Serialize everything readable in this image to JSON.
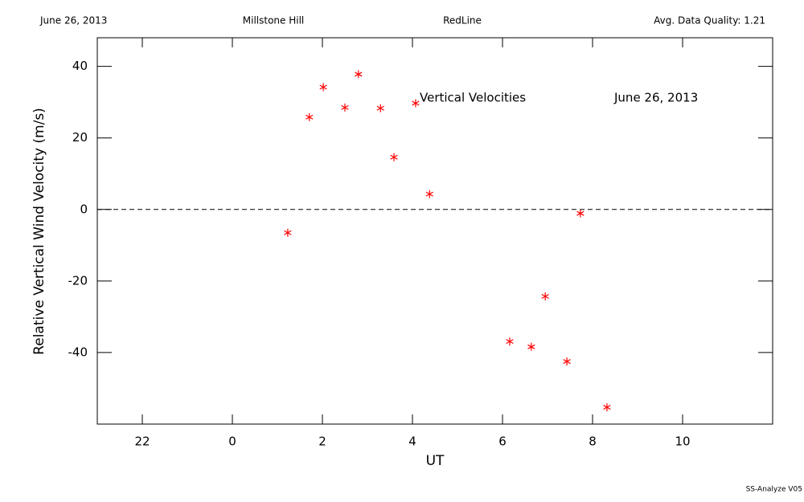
{
  "header": {
    "date": "June 26, 2013",
    "site": "Millstone Hill",
    "instrument": "RedLine",
    "quality": "Avg. Data Quality: 1.21"
  },
  "footer": "SS-Analyze V05",
  "chart_data": {
    "type": "scatter",
    "xlabel": "UT",
    "ylabel": "Relative Vertical Wind Velocity (m/s)",
    "annotations": [
      "Vertical Velocities",
      "June 26, 2013"
    ],
    "x": [
      1.23,
      1.71,
      2.02,
      2.5,
      2.8,
      3.29,
      3.59,
      4.07,
      4.38,
      6.16,
      6.64,
      6.95,
      7.43,
      7.73,
      8.32
    ],
    "series": [
      {
        "name": "Vertical Velocities",
        "color": "#ff0000",
        "values": [
          -6.5,
          25.8,
          34.2,
          28.5,
          37.8,
          28.3,
          14.6,
          29.7,
          4.3,
          -36.9,
          -38.4,
          -24.3,
          -42.5,
          -1.1,
          -55.3
        ]
      }
    ],
    "xlim": [
      -3,
      12
    ],
    "xticks": [
      {
        "value": -2,
        "label": "22"
      },
      0,
      2,
      4,
      6,
      8,
      10
    ],
    "ylim": [
      -60,
      48
    ],
    "yticks": [
      -40,
      -20,
      0,
      20,
      40
    ],
    "hline": 0
  }
}
